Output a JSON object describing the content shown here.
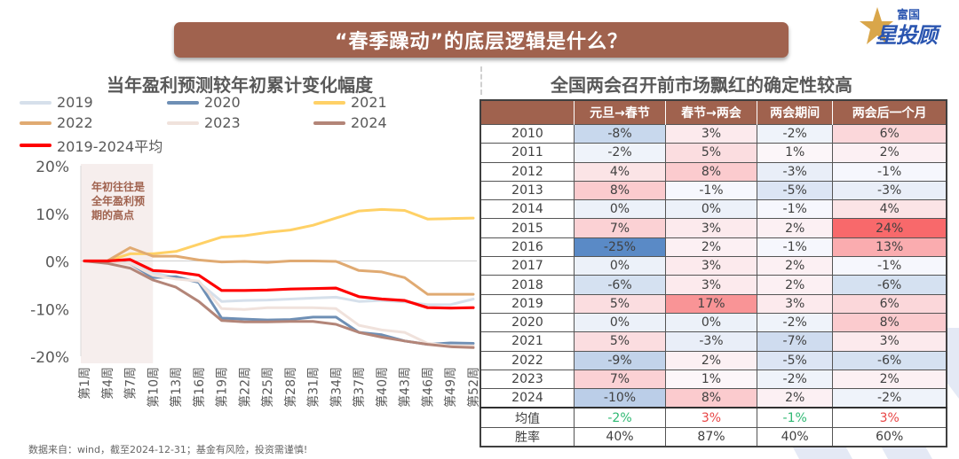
{
  "header": {
    "title": "“春季躁动”的底层逻辑是什么？",
    "logo_small": "富国",
    "logo_big": "星投顾"
  },
  "chart_data": {
    "type": "line",
    "title": "当年盈利预测较年初累计变化幅度",
    "xlabel": "",
    "ylabel": "",
    "ylim": [
      -20,
      20
    ],
    "yticks": [
      20,
      10,
      0,
      -10,
      -20
    ],
    "ytick_labels": [
      "20%",
      "10%",
      "0%",
      "-10%",
      "-20%"
    ],
    "x": [
      1,
      4,
      7,
      10,
      13,
      16,
      19,
      22,
      25,
      28,
      31,
      34,
      37,
      40,
      43,
      46,
      49,
      52
    ],
    "xtick_labels": [
      "第1周",
      "第4周",
      "第7周",
      "第10周",
      "第13周",
      "第16周",
      "第19周",
      "第22周",
      "第25周",
      "第28周",
      "第31周",
      "第34周",
      "第37周",
      "第40周",
      "第43周",
      "第46周",
      "第49周",
      "第52周"
    ],
    "grid": false,
    "legend_position": "top-left",
    "annotation": {
      "text_lines": [
        "年初往往是",
        "全年盈利预",
        "期的高点"
      ],
      "shaded_weeks": [
        1,
        10
      ]
    },
    "series": [
      {
        "name": "2019",
        "color": "#d6e0eb",
        "values": [
          0,
          0,
          -0.5,
          -2.5,
          -3.5,
          -4.5,
          -8.5,
          -8.3,
          -8.2,
          -8.0,
          -7.8,
          -7.6,
          -8.5,
          -8.3,
          -8.6,
          -9.2,
          -9.2,
          -8.0
        ]
      },
      {
        "name": "2020",
        "color": "#6e8fb5",
        "values": [
          0,
          0,
          -0.5,
          -3.5,
          -3.3,
          -4.5,
          -12.0,
          -12.2,
          -12.4,
          -12.3,
          -11.8,
          -11.8,
          -15.0,
          -15.5,
          -16.8,
          -17.5,
          -17.2,
          -17.3
        ]
      },
      {
        "name": "2021",
        "color": "#ffd166",
        "values": [
          0,
          0,
          1.5,
          1.5,
          2.0,
          3.5,
          5.0,
          5.3,
          6.0,
          6.5,
          7.5,
          9.0,
          10.5,
          10.8,
          10.6,
          8.8,
          8.9,
          9.0
        ]
      },
      {
        "name": "2022",
        "color": "#e0aa72",
        "values": [
          0,
          0,
          2.8,
          1.0,
          1.0,
          0.2,
          -0.2,
          -0.1,
          -0.3,
          0.0,
          0.0,
          -0.1,
          -2.0,
          -2.3,
          -3.5,
          -7.0,
          -7.0,
          -7.0
        ]
      },
      {
        "name": "2023",
        "color": "#f0e2dc",
        "values": [
          0,
          -0.2,
          -0.5,
          -3.0,
          -3.8,
          -4.2,
          -10.0,
          -10.2,
          -9.8,
          -9.8,
          -9.8,
          -10.0,
          -13.5,
          -14.5,
          -15.0,
          -17.3,
          -17.8,
          -17.8
        ]
      },
      {
        "name": "2024",
        "color": "#b38578",
        "values": [
          0,
          -0.5,
          -1.5,
          -4.0,
          -5.5,
          -8.5,
          -12.5,
          -12.8,
          -12.8,
          -12.7,
          -12.7,
          -13.3,
          -15.0,
          -16.0,
          -16.8,
          -17.5,
          -18.0,
          -18.2
        ]
      },
      {
        "name": "2019-2024平均",
        "color": "#ff0000",
        "values": [
          0,
          0,
          0.3,
          -2.0,
          -2.3,
          -3.0,
          -6.2,
          -6.2,
          -6.1,
          -5.9,
          -5.8,
          -5.7,
          -7.5,
          -8.0,
          -8.3,
          -9.8,
          -9.9,
          -9.8
        ]
      }
    ]
  },
  "table": {
    "title": "全国两会召开前市场飘红的确定性较高",
    "columns": [
      "",
      "元旦→春节",
      "春节→两会",
      "两会期间",
      "两会后一个月"
    ],
    "rows": [
      {
        "year": "2010",
        "values": [
          -8,
          3,
          -2,
          6
        ]
      },
      {
        "year": "2011",
        "values": [
          -2,
          5,
          1,
          2
        ]
      },
      {
        "year": "2012",
        "values": [
          4,
          8,
          -3,
          -1
        ]
      },
      {
        "year": "2013",
        "values": [
          8,
          -1,
          -5,
          -3
        ]
      },
      {
        "year": "2014",
        "values": [
          0,
          0,
          -1,
          4
        ]
      },
      {
        "year": "2015",
        "values": [
          7,
          3,
          2,
          24
        ]
      },
      {
        "year": "2016",
        "values": [
          -25,
          2,
          -1,
          13
        ]
      },
      {
        "year": "2017",
        "values": [
          0,
          3,
          2,
          -1
        ]
      },
      {
        "year": "2018",
        "values": [
          -6,
          3,
          2,
          -6
        ]
      },
      {
        "year": "2019",
        "values": [
          5,
          17,
          3,
          6
        ]
      },
      {
        "year": "2020",
        "values": [
          0,
          0,
          -2,
          8
        ]
      },
      {
        "year": "2021",
        "values": [
          5,
          -3,
          -7,
          3
        ]
      },
      {
        "year": "2022",
        "values": [
          -9,
          2,
          -5,
          -6
        ]
      },
      {
        "year": "2023",
        "values": [
          7,
          1,
          -2,
          2
        ]
      },
      {
        "year": "2024",
        "values": [
          -10,
          8,
          2,
          -2
        ]
      }
    ],
    "summary": [
      {
        "label": "均值",
        "values": [
          "-2%",
          "3%",
          "-1%",
          "3%"
        ],
        "colors": [
          "#2eb872",
          "#e84545",
          "#2eb872",
          "#e84545"
        ]
      },
      {
        "label": "胜率",
        "values": [
          "40%",
          "87%",
          "40%",
          "60%"
        ]
      }
    ],
    "colors": {
      "positive": "#f8696b",
      "negative": "#5a8ac6",
      "neutral": "#fcfcff"
    }
  },
  "footer": {
    "note": "数据来自：wind，截至2024-12-31；基金有风险，投资需谨慎!"
  }
}
